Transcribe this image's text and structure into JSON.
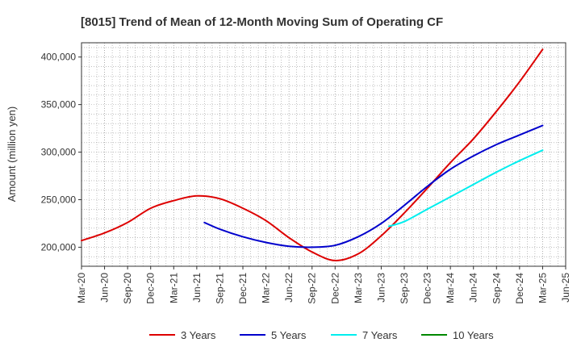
{
  "chart_data": {
    "type": "line",
    "title": "[8015]  Trend of Mean of 12-Month Moving Sum of Operating CF",
    "xlabel": "",
    "ylabel": "Amount (million yen)",
    "ylim": [
      180000,
      415000
    ],
    "y_ticks": [
      200000,
      250000,
      300000,
      350000,
      400000
    ],
    "y_tick_labels": [
      "200,000",
      "250,000",
      "300,000",
      "350,000",
      "400,000"
    ],
    "x_tick_labels": [
      "Mar-20",
      "Jun-20",
      "Sep-20",
      "Dec-20",
      "Mar-21",
      "Jun-21",
      "Sep-21",
      "Dec-21",
      "Mar-22",
      "Jun-22",
      "Sep-22",
      "Dec-22",
      "Mar-23",
      "Jun-23",
      "Sep-23",
      "Dec-23",
      "Mar-24",
      "Jun-24",
      "Sep-24",
      "Dec-24",
      "Mar-25",
      "Jun-25"
    ],
    "grid": true,
    "legend_position": "bottom",
    "series": [
      {
        "name": "3 Years",
        "color": "#dd0000",
        "points": [
          [
            0,
            207000
          ],
          [
            1,
            215000
          ],
          [
            2,
            226000
          ],
          [
            3,
            241000
          ],
          [
            4,
            249000
          ],
          [
            5,
            254000
          ],
          [
            6,
            251000
          ],
          [
            7,
            241000
          ],
          [
            8,
            228000
          ],
          [
            9,
            210000
          ],
          [
            10,
            195000
          ],
          [
            11,
            186000
          ],
          [
            12,
            193000
          ],
          [
            13,
            212000
          ],
          [
            14,
            236000
          ],
          [
            15,
            262000
          ],
          [
            16,
            289000
          ],
          [
            17,
            314000
          ],
          [
            18,
            343000
          ],
          [
            19,
            374000
          ],
          [
            20,
            408000
          ]
        ]
      },
      {
        "name": "5 Years",
        "color": "#0000cc",
        "points": [
          [
            5.33,
            226000
          ],
          [
            6,
            219000
          ],
          [
            7,
            211000
          ],
          [
            8,
            205000
          ],
          [
            9,
            201000
          ],
          [
            10,
            200000
          ],
          [
            11,
            202000
          ],
          [
            12,
            211000
          ],
          [
            13,
            225000
          ],
          [
            14,
            244000
          ],
          [
            15,
            264000
          ],
          [
            16,
            282000
          ],
          [
            17,
            296000
          ],
          [
            18,
            308000
          ],
          [
            19,
            318000
          ],
          [
            20,
            328000
          ]
        ]
      },
      {
        "name": "7 Years",
        "color": "#00eeee",
        "points": [
          [
            13.33,
            222000
          ],
          [
            14,
            227000
          ],
          [
            15,
            240000
          ],
          [
            16,
            253000
          ],
          [
            17,
            266000
          ],
          [
            18,
            279000
          ],
          [
            19,
            291000
          ],
          [
            20,
            302000
          ]
        ]
      },
      {
        "name": "10 Years",
        "color": "#008800",
        "points": []
      }
    ]
  }
}
